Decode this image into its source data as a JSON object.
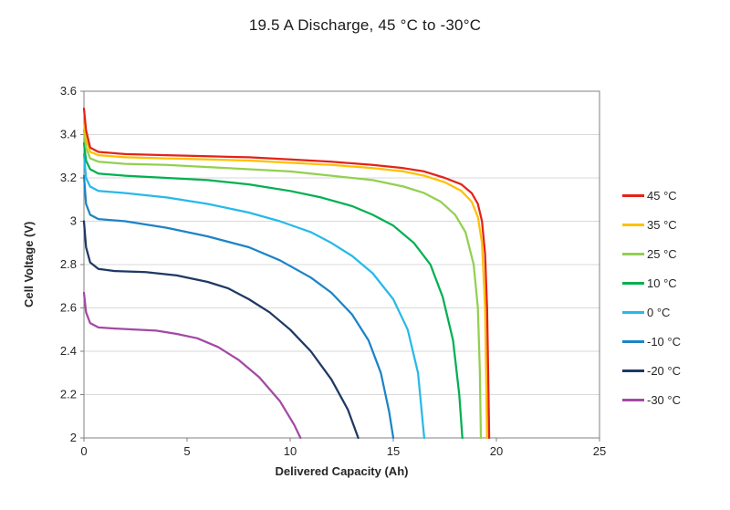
{
  "title": "19.5 A Discharge, 45 °C to -30°C",
  "chart_data": {
    "type": "line",
    "title": "19.5 A Discharge, 45 °C to -30°C",
    "xlabel": "Delivered Capacity (Ah)",
    "ylabel": "Cell Voltage (V)",
    "xlim": [
      0,
      25
    ],
    "ylim": [
      2,
      3.6
    ],
    "xticks": [
      0,
      5,
      10,
      15,
      20,
      25
    ],
    "yticks": [
      2,
      2.2,
      2.4,
      2.6,
      2.8,
      3,
      3.2,
      3.4,
      3.6
    ],
    "grid": "horizontal",
    "grid_color": "#d9d9d9",
    "border_color": "#808080",
    "legend_position": "right",
    "series": [
      {
        "name": "45 °C",
        "color": "#e2231a",
        "points": [
          [
            0,
            3.52
          ],
          [
            0.1,
            3.42
          ],
          [
            0.3,
            3.34
          ],
          [
            0.7,
            3.32
          ],
          [
            2,
            3.31
          ],
          [
            4,
            3.305
          ],
          [
            6,
            3.3
          ],
          [
            8,
            3.295
          ],
          [
            10,
            3.285
          ],
          [
            12,
            3.275
          ],
          [
            14,
            3.26
          ],
          [
            15.5,
            3.245
          ],
          [
            16.5,
            3.23
          ],
          [
            17.5,
            3.2
          ],
          [
            18.3,
            3.17
          ],
          [
            18.8,
            3.13
          ],
          [
            19.1,
            3.08
          ],
          [
            19.3,
            3.0
          ],
          [
            19.45,
            2.85
          ],
          [
            19.55,
            2.6
          ],
          [
            19.6,
            2.3
          ],
          [
            19.65,
            2.0
          ]
        ]
      },
      {
        "name": "35 °C",
        "color": "#ffc000",
        "points": [
          [
            0,
            3.46
          ],
          [
            0.1,
            3.38
          ],
          [
            0.3,
            3.32
          ],
          [
            0.7,
            3.305
          ],
          [
            2,
            3.295
          ],
          [
            4,
            3.29
          ],
          [
            6,
            3.285
          ],
          [
            8,
            3.28
          ],
          [
            10,
            3.27
          ],
          [
            12,
            3.26
          ],
          [
            14,
            3.245
          ],
          [
            15.5,
            3.23
          ],
          [
            16.5,
            3.21
          ],
          [
            17.5,
            3.18
          ],
          [
            18.3,
            3.14
          ],
          [
            18.8,
            3.09
          ],
          [
            19.1,
            3.02
          ],
          [
            19.3,
            2.9
          ],
          [
            19.45,
            2.6
          ],
          [
            19.5,
            2.3
          ],
          [
            19.55,
            2.0
          ]
        ]
      },
      {
        "name": "25 °C",
        "color": "#92d050",
        "points": [
          [
            0,
            3.42
          ],
          [
            0.1,
            3.34
          ],
          [
            0.3,
            3.29
          ],
          [
            0.7,
            3.275
          ],
          [
            2,
            3.265
          ],
          [
            4,
            3.26
          ],
          [
            6,
            3.25
          ],
          [
            8,
            3.24
          ],
          [
            10,
            3.23
          ],
          [
            12,
            3.21
          ],
          [
            14,
            3.19
          ],
          [
            15.5,
            3.16
          ],
          [
            16.5,
            3.13
          ],
          [
            17.3,
            3.09
          ],
          [
            18,
            3.03
          ],
          [
            18.5,
            2.95
          ],
          [
            18.9,
            2.8
          ],
          [
            19.1,
            2.6
          ],
          [
            19.2,
            2.3
          ],
          [
            19.25,
            2.0
          ]
        ]
      },
      {
        "name": "10 °C",
        "color": "#00b050",
        "points": [
          [
            0,
            3.36
          ],
          [
            0.1,
            3.28
          ],
          [
            0.3,
            3.24
          ],
          [
            0.7,
            3.22
          ],
          [
            2,
            3.21
          ],
          [
            4,
            3.2
          ],
          [
            6,
            3.19
          ],
          [
            8,
            3.17
          ],
          [
            10,
            3.14
          ],
          [
            11.5,
            3.11
          ],
          [
            13,
            3.07
          ],
          [
            14,
            3.03
          ],
          [
            15,
            2.98
          ],
          [
            16,
            2.9
          ],
          [
            16.8,
            2.8
          ],
          [
            17.4,
            2.65
          ],
          [
            17.9,
            2.45
          ],
          [
            18.2,
            2.2
          ],
          [
            18.35,
            2.0
          ]
        ]
      },
      {
        "name": "0 °C",
        "color": "#27b9ea",
        "points": [
          [
            0,
            3.31
          ],
          [
            0.1,
            3.2
          ],
          [
            0.3,
            3.16
          ],
          [
            0.7,
            3.14
          ],
          [
            2,
            3.13
          ],
          [
            4,
            3.11
          ],
          [
            6,
            3.08
          ],
          [
            8,
            3.04
          ],
          [
            9.5,
            3.0
          ],
          [
            11,
            2.95
          ],
          [
            12,
            2.9
          ],
          [
            13,
            2.84
          ],
          [
            14,
            2.76
          ],
          [
            15,
            2.64
          ],
          [
            15.7,
            2.5
          ],
          [
            16.2,
            2.3
          ],
          [
            16.5,
            2.0
          ]
        ]
      },
      {
        "name": "-10 °C",
        "color": "#1b84c6",
        "points": [
          [
            0,
            3.21
          ],
          [
            0.1,
            3.08
          ],
          [
            0.3,
            3.03
          ],
          [
            0.7,
            3.01
          ],
          [
            2,
            3.0
          ],
          [
            4,
            2.97
          ],
          [
            6,
            2.93
          ],
          [
            8,
            2.88
          ],
          [
            9.5,
            2.82
          ],
          [
            11,
            2.74
          ],
          [
            12,
            2.67
          ],
          [
            13,
            2.57
          ],
          [
            13.8,
            2.45
          ],
          [
            14.4,
            2.3
          ],
          [
            14.8,
            2.12
          ],
          [
            15.0,
            2.0
          ]
        ]
      },
      {
        "name": "-20 °C",
        "color": "#1f3864",
        "points": [
          [
            0,
            3.0
          ],
          [
            0.1,
            2.88
          ],
          [
            0.3,
            2.81
          ],
          [
            0.7,
            2.78
          ],
          [
            1.5,
            2.77
          ],
          [
            3,
            2.765
          ],
          [
            4.5,
            2.75
          ],
          [
            6,
            2.72
          ],
          [
            7,
            2.69
          ],
          [
            8,
            2.64
          ],
          [
            9,
            2.58
          ],
          [
            10,
            2.5
          ],
          [
            11,
            2.4
          ],
          [
            12,
            2.27
          ],
          [
            12.8,
            2.13
          ],
          [
            13.3,
            2.0
          ]
        ]
      },
      {
        "name": "-30 °C",
        "color": "#a349a4",
        "points": [
          [
            0,
            2.67
          ],
          [
            0.1,
            2.58
          ],
          [
            0.3,
            2.53
          ],
          [
            0.7,
            2.51
          ],
          [
            1.5,
            2.505
          ],
          [
            2.5,
            2.5
          ],
          [
            3.5,
            2.495
          ],
          [
            4.5,
            2.48
          ],
          [
            5.5,
            2.46
          ],
          [
            6.5,
            2.42
          ],
          [
            7.5,
            2.36
          ],
          [
            8.5,
            2.28
          ],
          [
            9.5,
            2.17
          ],
          [
            10.2,
            2.06
          ],
          [
            10.5,
            2.0
          ]
        ]
      }
    ]
  }
}
